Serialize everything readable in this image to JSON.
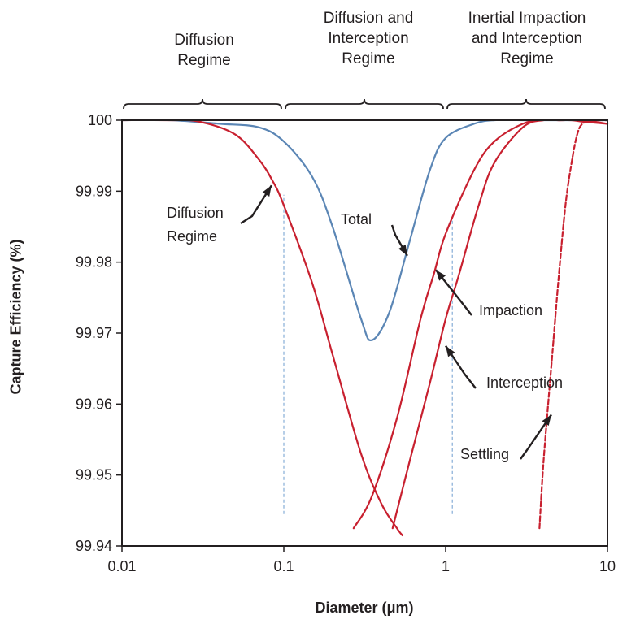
{
  "chart_data": {
    "type": "line",
    "x_scale": "log",
    "xlim": [
      0.01,
      10
    ],
    "ylim": [
      99.94,
      100
    ],
    "xlabel": "Diameter (μm)",
    "ylabel": "Capture Efficiency (%)",
    "x_ticks": [
      "0.01",
      "0.1",
      "1",
      "10"
    ],
    "y_ticks": [
      "99.94",
      "99.95",
      "99.96",
      "99.97",
      "99.98",
      "99.99",
      "100"
    ],
    "regimes": [
      {
        "label": "Diffusion\nRegime",
        "x_range": [
          0.01,
          0.1
        ]
      },
      {
        "label": "Diffusion and\nInterception\nRegime",
        "x_range": [
          0.1,
          1
        ]
      },
      {
        "label": "Inertial Impaction\nand Interception\nRegime",
        "x_range": [
          1,
          10
        ]
      }
    ],
    "series": [
      {
        "name": "Total",
        "color": "#5b86b5",
        "style": "solid",
        "x": [
          0.01,
          0.02,
          0.04,
          0.07,
          0.1,
          0.15,
          0.2,
          0.3,
          0.35,
          0.45,
          0.6,
          0.8,
          1.0,
          1.5,
          2.0,
          3.0,
          5.0,
          10.0
        ],
        "y": [
          100,
          100,
          99.9995,
          99.999,
          99.997,
          99.992,
          99.985,
          99.972,
          99.969,
          99.973,
          99.983,
          99.993,
          99.9975,
          99.9995,
          100,
          100,
          100,
          100
        ]
      },
      {
        "name": "Diffusion Regime",
        "color": "#c8202f",
        "style": "solid",
        "x": [
          0.01,
          0.02,
          0.03,
          0.05,
          0.07,
          0.085,
          0.1,
          0.15,
          0.2,
          0.3,
          0.4,
          0.5,
          0.54
        ],
        "y": [
          100,
          100,
          99.9998,
          99.998,
          99.9945,
          99.9915,
          99.988,
          99.977,
          99.967,
          99.953,
          99.946,
          99.9425,
          99.9415
        ]
      },
      {
        "name": "Impaction",
        "color": "#c8202f",
        "style": "solid",
        "x": [
          0.27,
          0.35,
          0.5,
          0.7,
          0.85,
          1.0,
          1.5,
          2.0,
          3.0,
          4.0,
          5.0,
          7.0,
          10.0
        ],
        "y": [
          99.9425,
          99.947,
          99.958,
          99.972,
          99.9785,
          99.984,
          99.993,
          99.997,
          99.9995,
          100,
          100,
          100,
          99.9995
        ]
      },
      {
        "name": "Interception",
        "color": "#c8202f",
        "style": "solid",
        "x": [
          0.47,
          0.6,
          0.8,
          1.0,
          1.2,
          1.6,
          2.0,
          3.0,
          4.0,
          5.0,
          6.0,
          7.0,
          10.0
        ],
        "y": [
          99.9425,
          99.952,
          99.963,
          99.972,
          99.978,
          99.988,
          99.994,
          99.999,
          100,
          100,
          100,
          99.9998,
          99.9995
        ]
      },
      {
        "name": "Settling",
        "color": "#c8202f",
        "style": "dashed",
        "x": [
          3.8,
          4.0,
          4.3,
          4.6,
          5.0,
          5.5,
          6.0,
          6.5,
          7.0,
          8.0,
          9.0,
          10.0
        ],
        "y": [
          99.9425,
          99.951,
          99.96,
          99.968,
          99.978,
          99.988,
          99.994,
          99.998,
          99.9995,
          100,
          100,
          100
        ]
      }
    ],
    "reference_lines": [
      {
        "x": 0.1,
        "y_range": [
          99.9445,
          99.9895
        ]
      },
      {
        "x": 1.1,
        "y_range": [
          99.9445,
          99.9865
        ]
      }
    ],
    "annotations": [
      {
        "text": "Diffusion\nRegime",
        "points_to": {
          "x": 0.084,
          "y": 99.9908
        }
      },
      {
        "text": "Total",
        "points_to": {
          "x": 0.58,
          "y": 99.9809
        }
      },
      {
        "text": "Impaction",
        "points_to": {
          "x": 0.87,
          "y": 99.9789
        }
      },
      {
        "text": "Interception",
        "points_to": {
          "x": 1.0,
          "y": 99.9682
        }
      },
      {
        "text": "Settling",
        "points_to": {
          "x": 4.5,
          "y": 99.9585
        }
      }
    ]
  }
}
